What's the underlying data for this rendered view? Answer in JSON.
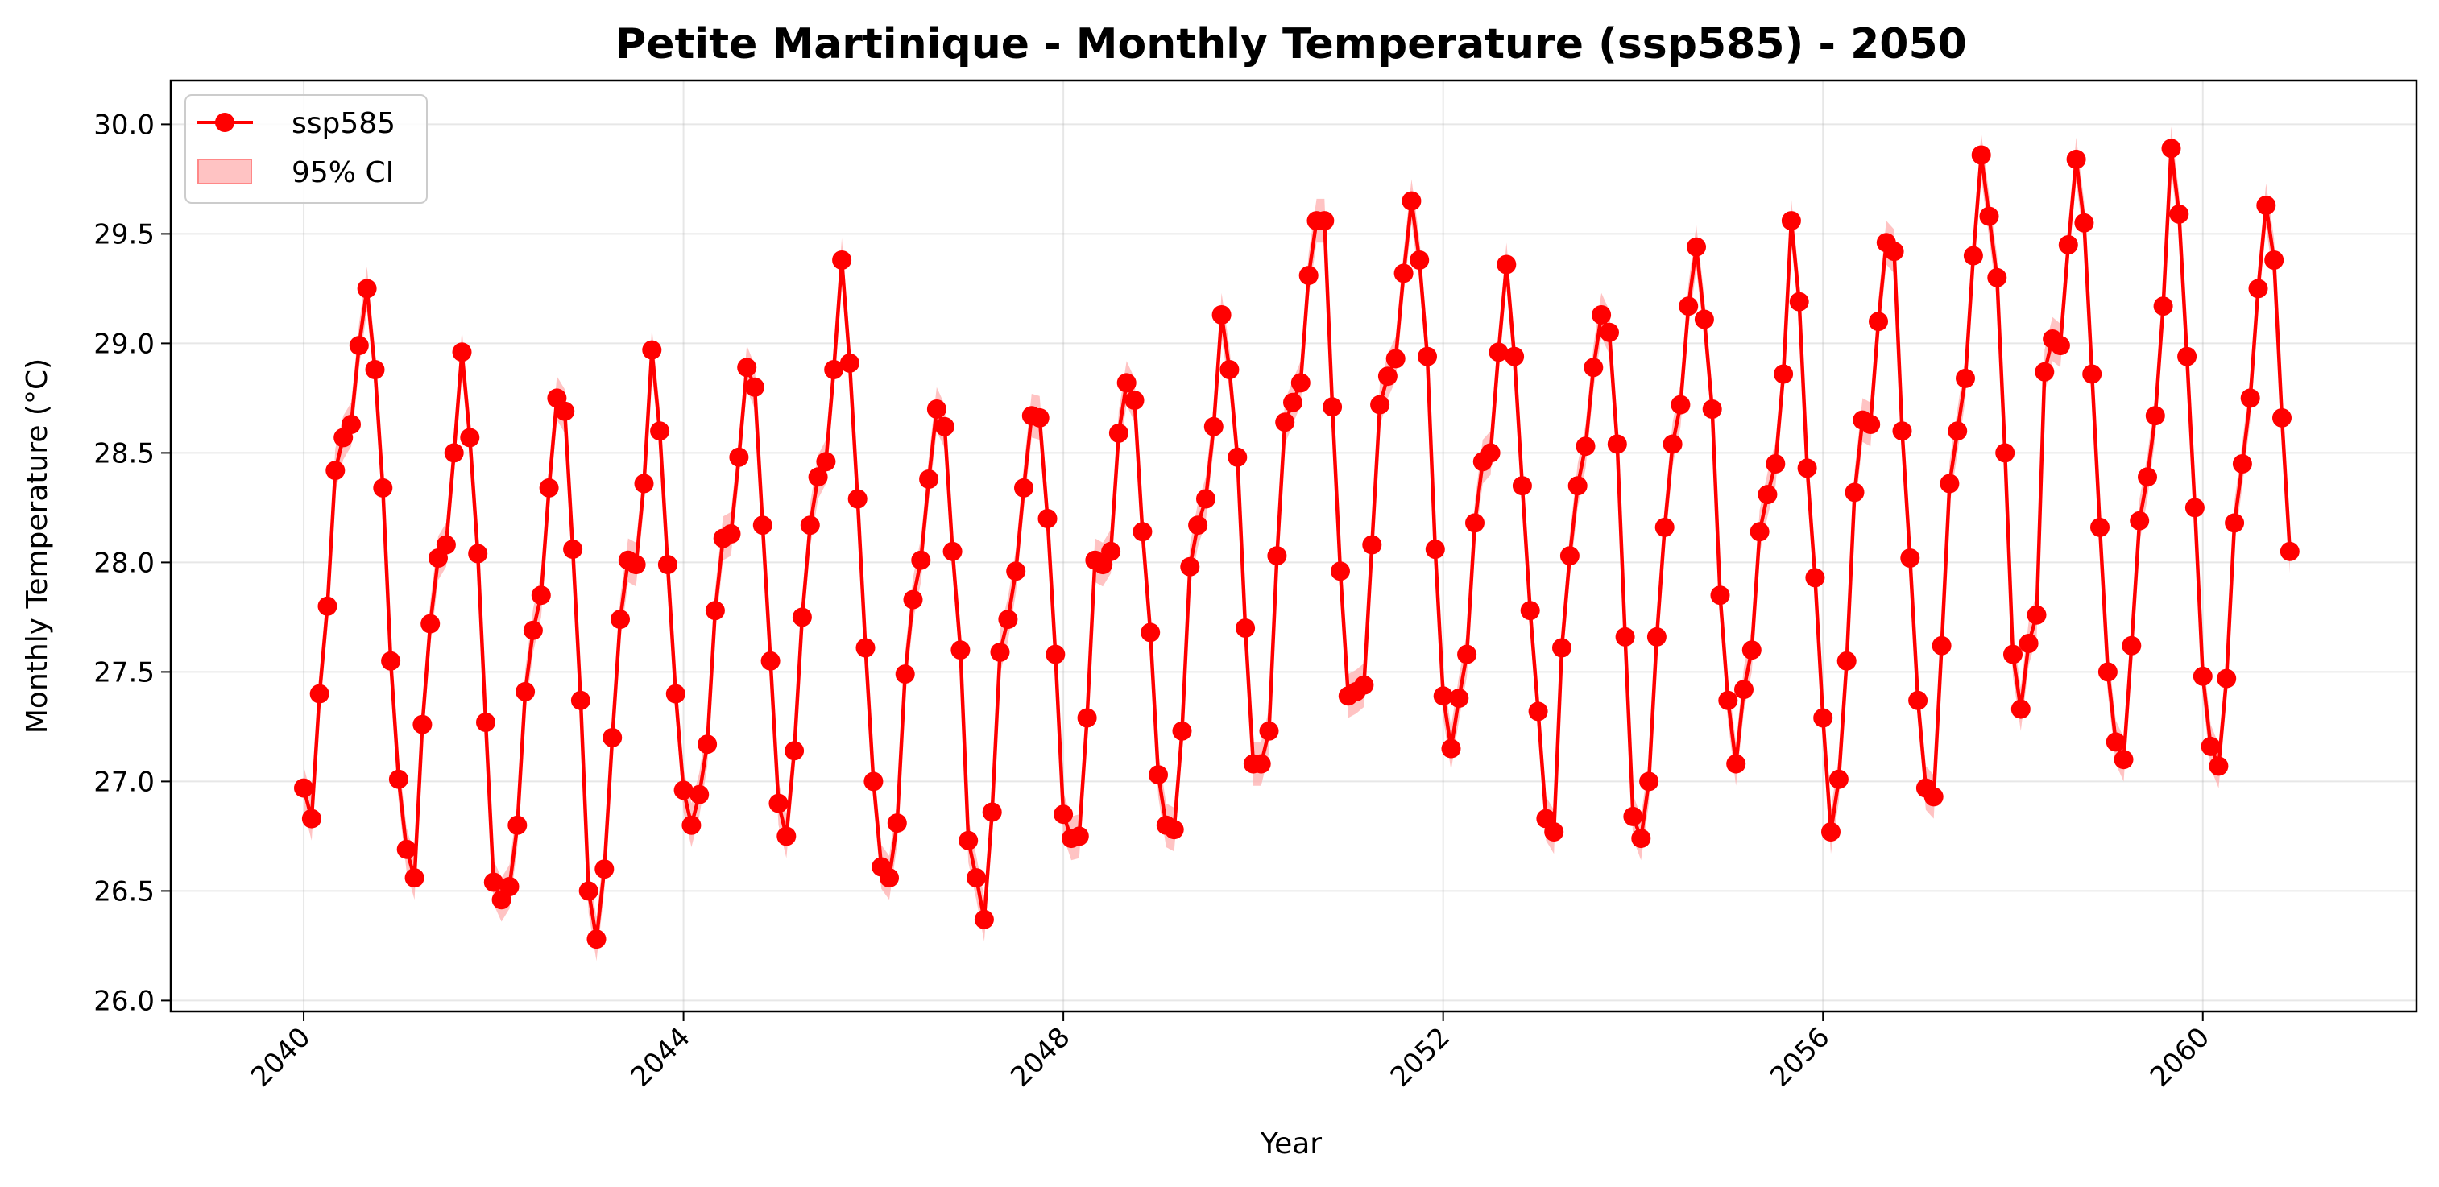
{
  "chart_data": {
    "type": "line",
    "title": "Petite Martinique - Monthly Temperature (ssp585) - 2050",
    "xlabel": "Year",
    "ylabel": "Monthly Temperature (°C)",
    "xlim": [
      2038.6,
      2062.25
    ],
    "ylim": [
      25.95,
      30.2
    ],
    "xticks": [
      "2040",
      "2044",
      "2048",
      "2052",
      "2056",
      "2060"
    ],
    "yticks": [
      "26.0",
      "26.5",
      "27.0",
      "27.5",
      "28.0",
      "28.5",
      "29.0",
      "29.5",
      "30.0"
    ],
    "grid": true,
    "legend_position": "top-left",
    "colors": {
      "series": "#ff0000",
      "ci_fill": "#ffaaaa"
    },
    "ci_half_width": 0.1,
    "series": [
      {
        "name": "ssp585",
        "ci_name": "95% CI",
        "start": "2040-01",
        "frequency": "monthly",
        "values": [
          26.97,
          26.83,
          27.4,
          27.8,
          28.42,
          28.57,
          28.63,
          28.99,
          29.25,
          28.88,
          28.34,
          27.55,
          27.01,
          26.69,
          26.56,
          27.26,
          27.72,
          28.02,
          28.08,
          28.5,
          28.96,
          28.57,
          28.04,
          27.27,
          26.54,
          26.46,
          26.52,
          26.8,
          27.41,
          27.69,
          27.85,
          28.34,
          28.75,
          28.69,
          28.06,
          27.37,
          26.5,
          26.28,
          26.6,
          27.2,
          27.74,
          28.01,
          27.99,
          28.36,
          28.97,
          28.6,
          27.99,
          27.4,
          26.96,
          26.8,
          26.94,
          27.17,
          27.78,
          28.11,
          28.13,
          28.48,
          28.89,
          28.8,
          28.17,
          27.55,
          26.9,
          26.75,
          27.14,
          27.75,
          28.17,
          28.39,
          28.46,
          28.88,
          29.38,
          28.91,
          28.29,
          27.61,
          27.0,
          26.61,
          26.56,
          26.81,
          27.49,
          27.83,
          28.01,
          28.38,
          28.7,
          28.62,
          28.05,
          27.6,
          26.73,
          26.56,
          26.37,
          26.86,
          27.59,
          27.74,
          27.96,
          28.34,
          28.67,
          28.66,
          28.2,
          27.58,
          26.85,
          26.74,
          26.75,
          27.29,
          28.01,
          27.99,
          28.05,
          28.59,
          28.82,
          28.74,
          28.14,
          27.68,
          27.03,
          26.8,
          26.78,
          27.23,
          27.98,
          28.17,
          28.29,
          28.62,
          29.13,
          28.88,
          28.48,
          27.7,
          27.08,
          27.08,
          27.23,
          28.03,
          28.64,
          28.73,
          28.82,
          29.31,
          29.56,
          29.56,
          28.71,
          27.96,
          27.39,
          27.41,
          27.44,
          28.08,
          28.72,
          28.85,
          28.93,
          29.32,
          29.65,
          29.38,
          28.94,
          28.06,
          27.39,
          27.15,
          27.38,
          27.58,
          28.18,
          28.46,
          28.5,
          28.96,
          29.36,
          28.94,
          28.35,
          27.78,
          27.32,
          26.83,
          26.77,
          27.61,
          28.03,
          28.35,
          28.53,
          28.89,
          29.13,
          29.05,
          28.54,
          27.66,
          26.84,
          26.74,
          27.0,
          27.66,
          28.16,
          28.54,
          28.72,
          29.17,
          29.44,
          29.11,
          28.7,
          27.85,
          27.37,
          27.08,
          27.42,
          27.6,
          28.14,
          28.31,
          28.45,
          28.86,
          29.56,
          29.19,
          28.43,
          27.93,
          27.29,
          26.77,
          27.01,
          27.55,
          28.32,
          28.65,
          28.63,
          29.1,
          29.46,
          29.42,
          28.6,
          28.02,
          27.37,
          26.97,
          26.93,
          27.62,
          28.36,
          28.6,
          28.84,
          29.4,
          29.86,
          29.58,
          29.3,
          28.5,
          27.58,
          27.33,
          27.63,
          27.76,
          28.87,
          29.02,
          28.99,
          29.45,
          29.84,
          29.55,
          28.86,
          28.16,
          27.5,
          27.18,
          27.1,
          27.62,
          28.19,
          28.39,
          28.67,
          29.17,
          29.89,
          29.59,
          28.94,
          28.25,
          27.48,
          27.16,
          27.07,
          27.47,
          28.18,
          28.45,
          28.75,
          29.25,
          29.63,
          29.38,
          28.66,
          28.05
        ]
      }
    ]
  }
}
